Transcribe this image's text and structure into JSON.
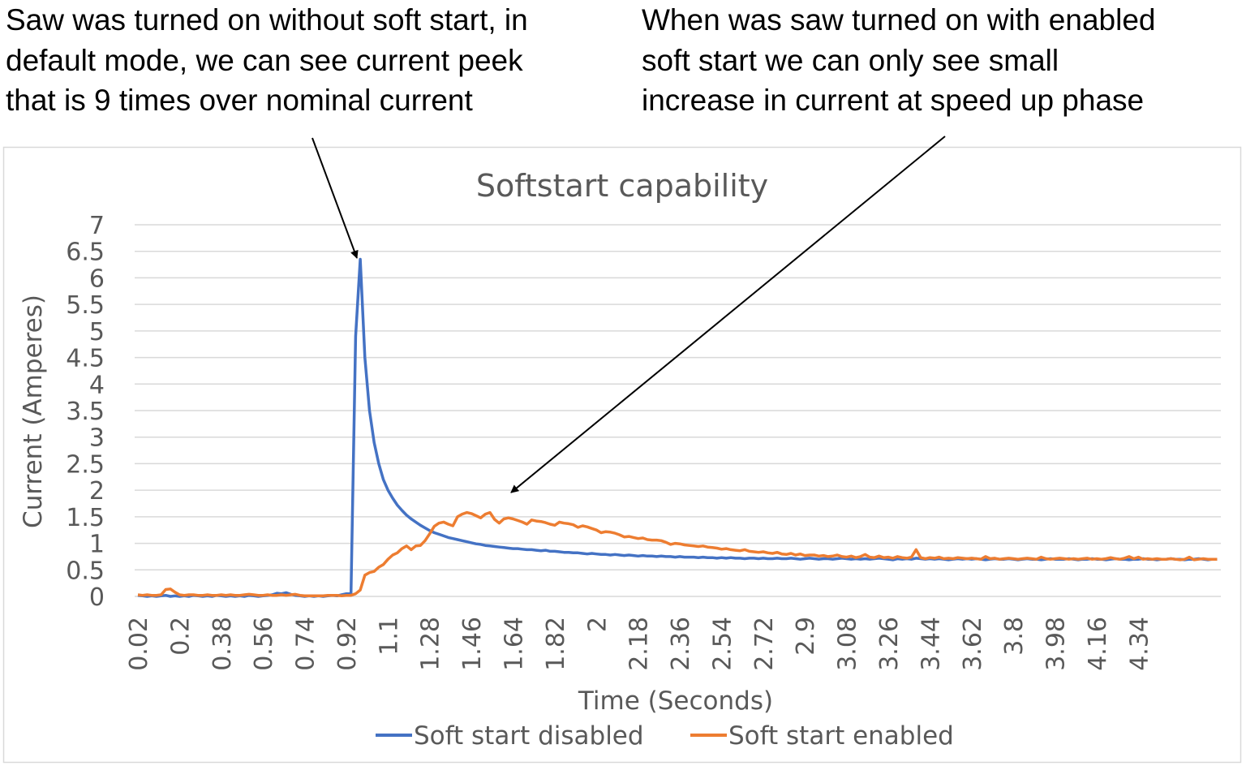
{
  "annotations": {
    "left": [
      "Saw was turned on without soft start, in",
      "default mode, we can see current peek",
      "that is 9 times over nominal current"
    ],
    "right": [
      "When was saw turned on with enabled",
      "soft start we can only see small",
      "increase in current at speed up phase"
    ]
  },
  "chart_data": {
    "type": "line",
    "title": "Softstart capability",
    "xlabel": "Time (Seconds)",
    "ylabel": "Current (Amperes)",
    "ylim": [
      0,
      7
    ],
    "y_ticks": [
      "0",
      "0.5",
      "1",
      "1.5",
      "2",
      "2.5",
      "3",
      "3.5",
      "4",
      "4.5",
      "5",
      "5.5",
      "6",
      "6.5",
      "7"
    ],
    "x_start": 0.02,
    "x_step": 0.02,
    "x_tick_every": 9,
    "x_tick_labels": [
      "0.02",
      "0.2",
      "0.38",
      "0.56",
      "0.74",
      "0.92",
      "1.1",
      "1.28",
      "1.46",
      "1.64",
      "1.82",
      "2",
      "2.18",
      "2.36",
      "2.54",
      "2.72",
      "2.9",
      "3.08",
      "3.26",
      "3.44",
      "3.62",
      "3.8",
      "3.98",
      "4.16",
      "4.34"
    ],
    "grid": true,
    "legend_position": "bottom",
    "series": [
      {
        "name": "Soft start disabled",
        "color": "#4472c4",
        "values": [
          0.02,
          0.01,
          0.0,
          0.01,
          0.0,
          0.01,
          0.02,
          0.0,
          0.01,
          0.0,
          0.01,
          0.0,
          0.02,
          0.01,
          0.0,
          0.01,
          0.0,
          0.02,
          0.01,
          0.0,
          0.01,
          0.0,
          0.01,
          0.0,
          0.02,
          0.01,
          0.0,
          0.01,
          0.02,
          0.03,
          0.06,
          0.05,
          0.07,
          0.04,
          0.02,
          0.01,
          0.0,
          0.01,
          0.0,
          0.01,
          0.0,
          0.01,
          0.02,
          0.01,
          0.03,
          0.05,
          0.06,
          4.9,
          6.35,
          4.5,
          3.5,
          2.9,
          2.5,
          2.2,
          2.0,
          1.85,
          1.72,
          1.62,
          1.53,
          1.46,
          1.4,
          1.34,
          1.29,
          1.24,
          1.2,
          1.17,
          1.14,
          1.11,
          1.09,
          1.07,
          1.05,
          1.03,
          1.01,
          0.99,
          0.98,
          0.96,
          0.95,
          0.94,
          0.93,
          0.92,
          0.91,
          0.9,
          0.9,
          0.89,
          0.88,
          0.88,
          0.87,
          0.86,
          0.87,
          0.85,
          0.85,
          0.84,
          0.83,
          0.83,
          0.82,
          0.82,
          0.81,
          0.8,
          0.81,
          0.8,
          0.79,
          0.79,
          0.78,
          0.79,
          0.78,
          0.77,
          0.78,
          0.77,
          0.76,
          0.77,
          0.76,
          0.76,
          0.75,
          0.76,
          0.75,
          0.75,
          0.74,
          0.75,
          0.74,
          0.74,
          0.74,
          0.73,
          0.74,
          0.73,
          0.73,
          0.72,
          0.73,
          0.72,
          0.73,
          0.72,
          0.72,
          0.71,
          0.72,
          0.72,
          0.71,
          0.72,
          0.71,
          0.71,
          0.72,
          0.71,
          0.71,
          0.72,
          0.71,
          0.7,
          0.71,
          0.72,
          0.71,
          0.7,
          0.71,
          0.71,
          0.7,
          0.71,
          0.72,
          0.71,
          0.7,
          0.71,
          0.7,
          0.71,
          0.7,
          0.71,
          0.72,
          0.71,
          0.7,
          0.69,
          0.71,
          0.7,
          0.71,
          0.7,
          0.72,
          0.71,
          0.7,
          0.71,
          0.7,
          0.71,
          0.7,
          0.69,
          0.7,
          0.71,
          0.7,
          0.71,
          0.7,
          0.71,
          0.7,
          0.69,
          0.7,
          0.71,
          0.7,
          0.7,
          0.71,
          0.7,
          0.69,
          0.7,
          0.71,
          0.7,
          0.7,
          0.69,
          0.7,
          0.71,
          0.7,
          0.7,
          0.7,
          0.71,
          0.7,
          0.69,
          0.7,
          0.7,
          0.71,
          0.7,
          0.7,
          0.69,
          0.7,
          0.71,
          0.7,
          0.7,
          0.69,
          0.7,
          0.7,
          0.71,
          0.7,
          0.7,
          0.69,
          0.7,
          0.7,
          0.71,
          0.7,
          0.7,
          0.69,
          0.7,
          0.7,
          0.71,
          0.7,
          0.69,
          0.7,
          0.7
        ]
      },
      {
        "name": "Soft start enabled",
        "color": "#ed7d31",
        "values": [
          0.03,
          0.02,
          0.03,
          0.02,
          0.02,
          0.03,
          0.13,
          0.14,
          0.08,
          0.03,
          0.02,
          0.03,
          0.03,
          0.02,
          0.02,
          0.03,
          0.02,
          0.02,
          0.03,
          0.02,
          0.03,
          0.02,
          0.02,
          0.03,
          0.04,
          0.03,
          0.02,
          0.02,
          0.03,
          0.02,
          0.02,
          0.03,
          0.02,
          0.03,
          0.04,
          0.02,
          0.01,
          0.01,
          0.01,
          0.01,
          0.01,
          0.02,
          0.02,
          0.02,
          0.01,
          0.02,
          0.02,
          0.05,
          0.12,
          0.4,
          0.45,
          0.47,
          0.55,
          0.6,
          0.7,
          0.78,
          0.82,
          0.9,
          0.95,
          0.88,
          0.95,
          0.96,
          1.05,
          1.18,
          1.32,
          1.38,
          1.4,
          1.36,
          1.33,
          1.5,
          1.55,
          1.58,
          1.56,
          1.52,
          1.48,
          1.55,
          1.58,
          1.45,
          1.38,
          1.46,
          1.48,
          1.46,
          1.43,
          1.4,
          1.36,
          1.44,
          1.42,
          1.41,
          1.39,
          1.36,
          1.34,
          1.4,
          1.38,
          1.37,
          1.35,
          1.3,
          1.33,
          1.31,
          1.28,
          1.25,
          1.2,
          1.22,
          1.21,
          1.19,
          1.16,
          1.12,
          1.13,
          1.11,
          1.09,
          1.1,
          1.07,
          1.06,
          1.06,
          1.05,
          1.02,
          0.98,
          1.0,
          0.99,
          0.97,
          0.96,
          0.95,
          0.94,
          0.95,
          0.93,
          0.92,
          0.91,
          0.89,
          0.9,
          0.88,
          0.87,
          0.86,
          0.88,
          0.85,
          0.84,
          0.83,
          0.84,
          0.82,
          0.81,
          0.83,
          0.8,
          0.79,
          0.81,
          0.78,
          0.8,
          0.77,
          0.78,
          0.78,
          0.76,
          0.77,
          0.75,
          0.76,
          0.78,
          0.75,
          0.74,
          0.76,
          0.73,
          0.75,
          0.79,
          0.74,
          0.73,
          0.76,
          0.73,
          0.74,
          0.72,
          0.75,
          0.73,
          0.72,
          0.74,
          0.88,
          0.73,
          0.71,
          0.73,
          0.72,
          0.74,
          0.71,
          0.72,
          0.71,
          0.73,
          0.72,
          0.71,
          0.72,
          0.71,
          0.7,
          0.75,
          0.71,
          0.72,
          0.7,
          0.71,
          0.72,
          0.71,
          0.7,
          0.71,
          0.72,
          0.71,
          0.7,
          0.74,
          0.71,
          0.7,
          0.71,
          0.72,
          0.71,
          0.7,
          0.71,
          0.7,
          0.71,
          0.72,
          0.7,
          0.71,
          0.7,
          0.71,
          0.73,
          0.71,
          0.7,
          0.72,
          0.75,
          0.71,
          0.74,
          0.7,
          0.71,
          0.7,
          0.71,
          0.7,
          0.7,
          0.71,
          0.7,
          0.69,
          0.7,
          0.74,
          0.69,
          0.7,
          0.71,
          0.7,
          0.7,
          0.7
        ]
      }
    ]
  }
}
